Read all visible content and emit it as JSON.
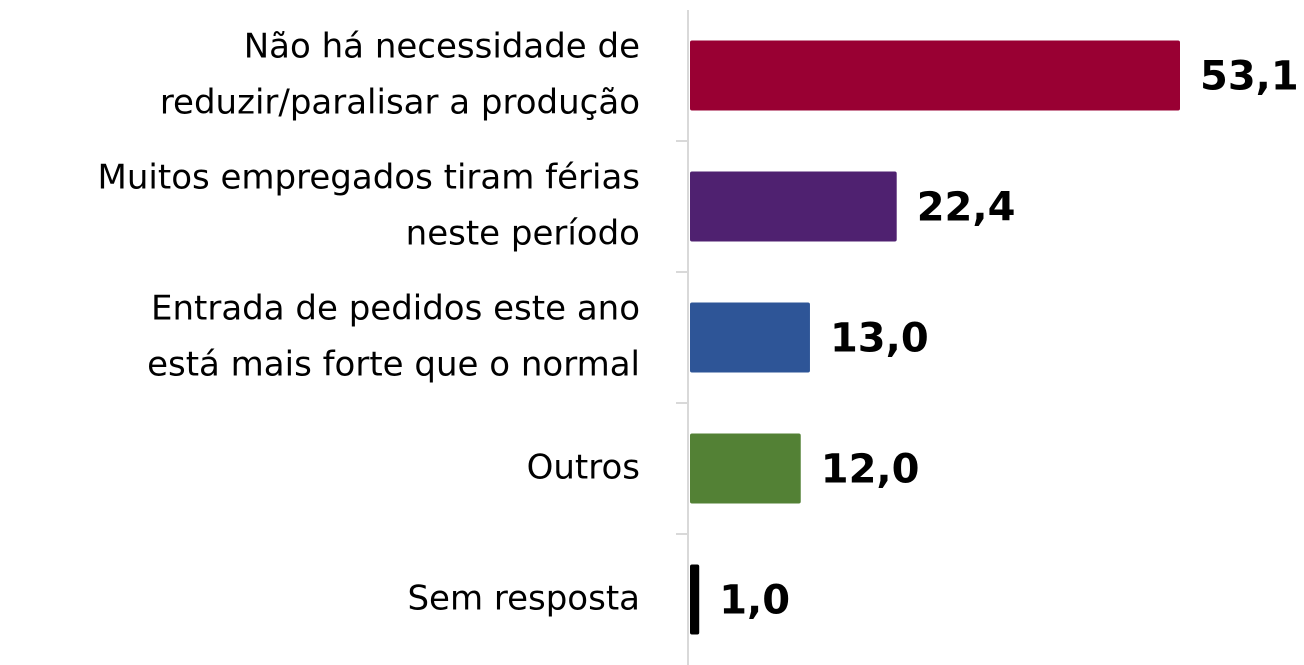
{
  "chart_data": {
    "type": "barh",
    "categories": [
      [
        "Não há necessidade de",
        "reduzir/paralisar a produção"
      ],
      [
        "Muitos empregados tiram férias",
        "neste período"
      ],
      [
        "Entrada de pedidos este ano",
        "está mais forte que o normal"
      ],
      [
        "Outros"
      ],
      [
        "Sem resposta"
      ]
    ],
    "values": [
      53.1,
      22.4,
      13.0,
      12.0,
      1.0
    ],
    "value_labels": [
      "53,1",
      "22,4",
      "13,0",
      "12,0",
      "1,0"
    ],
    "colors": [
      "#990033",
      "#4f2170",
      "#2e5597",
      "#538135",
      "#000000"
    ]
  }
}
